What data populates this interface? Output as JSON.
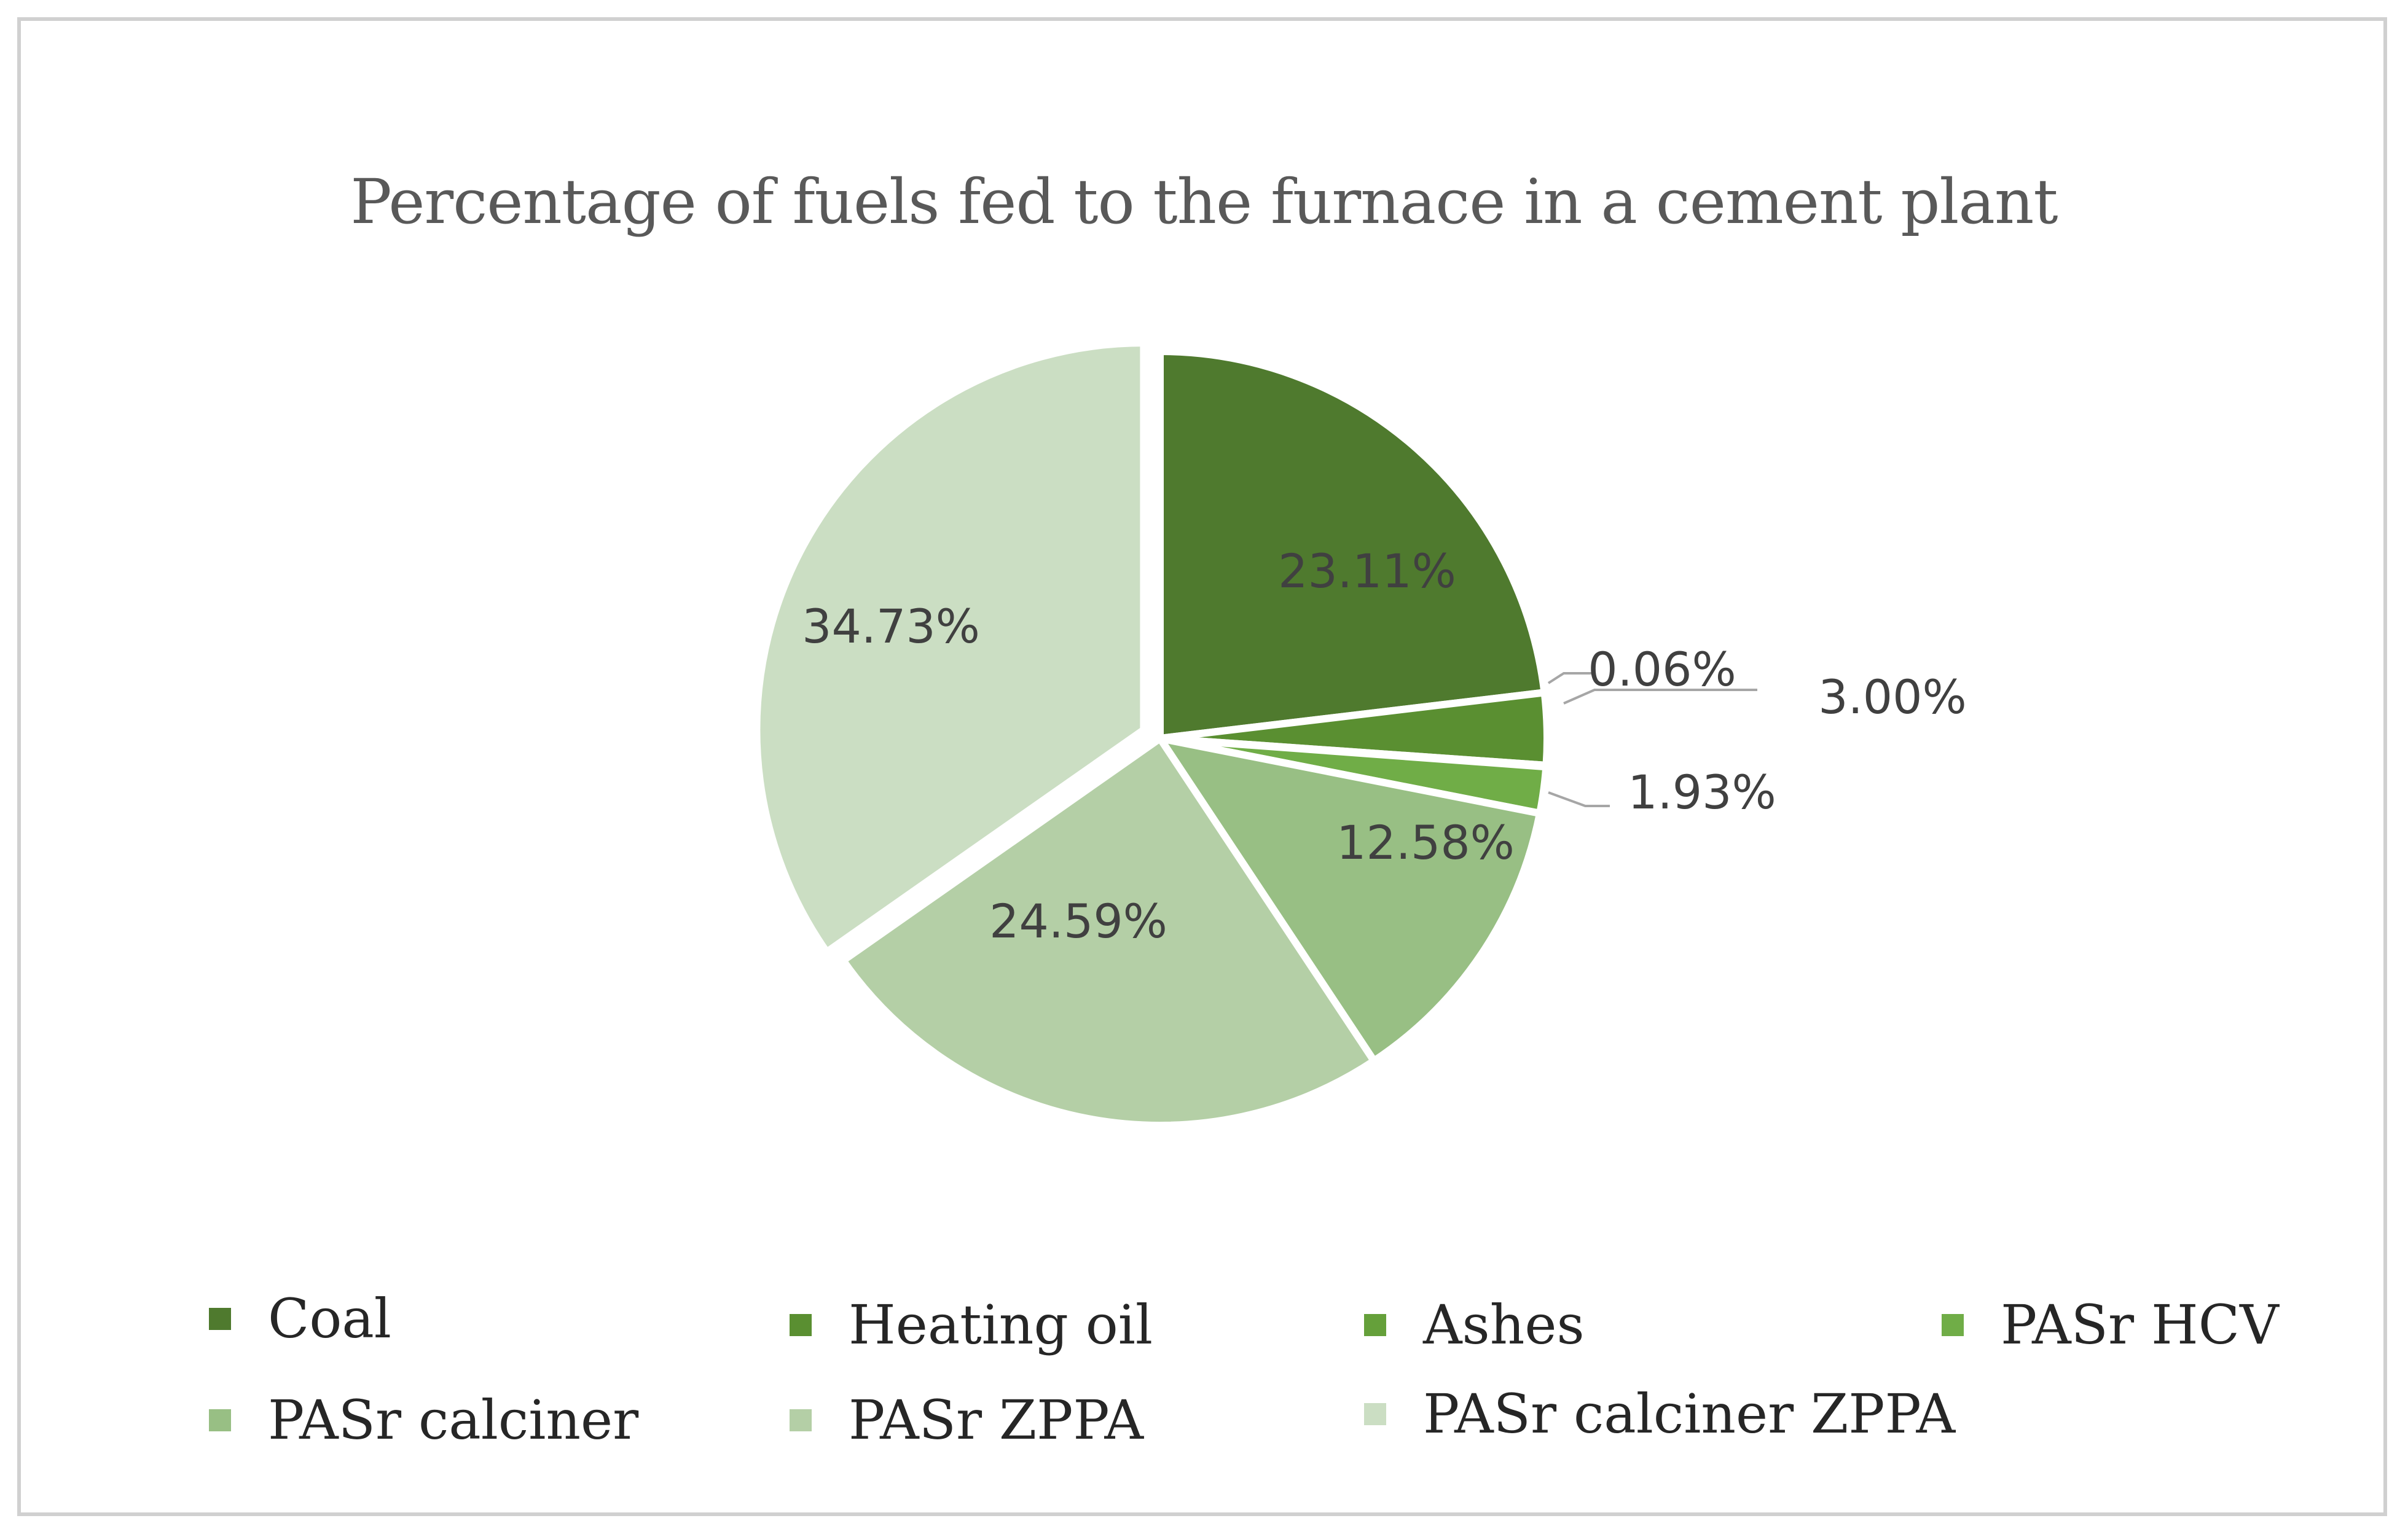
{
  "chart_data": {
    "type": "pie",
    "title": "Percentage of fuels fed to the furnace in a cement plant",
    "slices": [
      {
        "name": "Coal",
        "value": 23.11,
        "label": "23.11%",
        "color": "#4f7a2e",
        "explode": false
      },
      {
        "name": "Heating oil",
        "value": 3.0,
        "label": "3.00%",
        "color": "#5a8f31",
        "explode": false
      },
      {
        "name": "Ashes",
        "value": 0.06,
        "label": "0.06%",
        "color": "#65a03a",
        "explode": false
      },
      {
        "name": "PASr HCV",
        "value": 1.93,
        "label": "1.93%",
        "color": "#70ad47",
        "explode": false
      },
      {
        "name": "PASr calciner",
        "value": 12.58,
        "label": "12.58%",
        "color": "#98bf84",
        "explode": false
      },
      {
        "name": "PASr ZPPA",
        "value": 24.59,
        "label": "24.59%",
        "color": "#b4cfa6",
        "explode": false
      },
      {
        "name": "PASr calciner ZPPA",
        "value": 34.73,
        "label": "34.73%",
        "color": "#cbdec3",
        "explode": true
      }
    ],
    "legend_position": "bottom"
  }
}
